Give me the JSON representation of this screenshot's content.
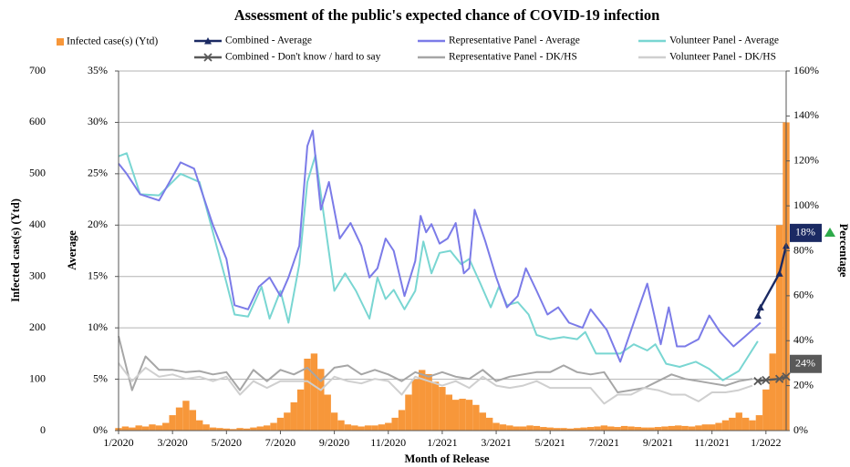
{
  "chart_data": {
    "type": "combo",
    "title": "Assessment of the public's expected chance of COVID-19 infection",
    "xlabel": "Month of Release",
    "ylabel": "Infected case(s) (Ytd)",
    "y2label": "Average",
    "y3label": "Percentage",
    "xlim": [
      0,
      24.75
    ],
    "xticks": [
      {
        "value": 0,
        "label": "1/2020"
      },
      {
        "value": 2,
        "label": "3/2020"
      },
      {
        "value": 4,
        "label": "5/2020"
      },
      {
        "value": 6,
        "label": "7/2020"
      },
      {
        "value": 8,
        "label": "9/2020"
      },
      {
        "value": 10,
        "label": "11/2020"
      },
      {
        "value": 12,
        "label": "1/2021"
      },
      {
        "value": 14,
        "label": "3/2021"
      },
      {
        "value": 16,
        "label": "5/2021"
      },
      {
        "value": 18,
        "label": "7/2021"
      },
      {
        "value": 20,
        "label": "9/2021"
      },
      {
        "value": 22,
        "label": "11/2021"
      },
      {
        "value": 24,
        "label": "1/2022"
      }
    ],
    "ylim": [
      0,
      700
    ],
    "yticks": [
      0,
      100,
      200,
      300,
      400,
      500,
      600,
      700
    ],
    "y2lim": [
      0,
      35
    ],
    "y2ticks": [
      {
        "value": 0,
        "label": "0%"
      },
      {
        "value": 5,
        "label": "5%"
      },
      {
        "value": 10,
        "label": "10%"
      },
      {
        "value": 15,
        "label": "15%"
      },
      {
        "value": 20,
        "label": "20%"
      },
      {
        "value": 25,
        "label": "25%"
      },
      {
        "value": 30,
        "label": "30%"
      },
      {
        "value": 35,
        "label": "35%"
      }
    ],
    "y3lim": [
      0,
      160
    ],
    "y3ticks": [
      {
        "value": 0,
        "label": "0%"
      },
      {
        "value": 20,
        "label": "20%"
      },
      {
        "value": 40,
        "label": "40%"
      },
      {
        "value": 60,
        "label": "60%"
      },
      {
        "value": 80,
        "label": "80%"
      },
      {
        "value": 100,
        "label": "100%"
      },
      {
        "value": 120,
        "label": "120%"
      },
      {
        "value": 140,
        "label": "140%"
      },
      {
        "value": 160,
        "label": "160%"
      }
    ],
    "grid": true,
    "series": [
      {
        "name": "Infected case(s) (Ytd)",
        "type": "bar",
        "axis": "y",
        "color": "#f7973a",
        "x": [
          0,
          0.25,
          0.5,
          0.75,
          1,
          1.25,
          1.5,
          1.75,
          2,
          2.25,
          2.5,
          2.75,
          3,
          3.25,
          3.5,
          3.75,
          4,
          4.25,
          4.5,
          4.75,
          5,
          5.25,
          5.5,
          5.75,
          6,
          6.25,
          6.5,
          6.75,
          7,
          7.25,
          7.5,
          7.75,
          8,
          8.25,
          8.5,
          8.75,
          9,
          9.25,
          9.5,
          9.75,
          10,
          10.25,
          10.5,
          10.75,
          11,
          11.25,
          11.5,
          11.75,
          12,
          12.25,
          12.5,
          12.75,
          13,
          13.25,
          13.5,
          13.75,
          14,
          14.25,
          14.5,
          14.75,
          15,
          15.25,
          15.5,
          15.75,
          16,
          16.25,
          16.5,
          16.75,
          17,
          17.25,
          17.5,
          17.75,
          18,
          18.25,
          18.5,
          18.75,
          19,
          19.25,
          19.5,
          19.75,
          20,
          20.25,
          20.5,
          20.75,
          21,
          21.25,
          21.5,
          21.75,
          22,
          22.25,
          22.5,
          22.75,
          23,
          23.25,
          23.5,
          23.75,
          24,
          24.25,
          24.5,
          24.75
        ],
        "values": [
          5,
          8,
          6,
          10,
          8,
          12,
          10,
          15,
          30,
          45,
          58,
          40,
          20,
          12,
          6,
          5,
          4,
          3,
          5,
          4,
          6,
          8,
          10,
          15,
          25,
          35,
          55,
          80,
          140,
          150,
          120,
          70,
          35,
          20,
          12,
          10,
          8,
          10,
          10,
          12,
          15,
          25,
          40,
          70,
          100,
          118,
          110,
          95,
          85,
          70,
          60,
          62,
          60,
          50,
          35,
          25,
          15,
          12,
          10,
          8,
          8,
          10,
          9,
          7,
          6,
          5,
          5,
          4,
          5,
          6,
          7,
          8,
          10,
          8,
          7,
          9,
          8,
          7,
          6,
          6,
          7,
          8,
          9,
          10,
          9,
          8,
          10,
          12,
          12,
          15,
          20,
          25,
          35,
          25,
          20,
          30,
          80,
          150,
          400,
          600
        ]
      },
      {
        "name": "Combined - Average",
        "type": "line",
        "axis": "y2",
        "color": "#1b2a63",
        "marker": "triangle",
        "x": [
          23.7,
          23.8,
          24.5,
          24.75
        ],
        "values": [
          11.2,
          12,
          15.3,
          18
        ],
        "value_labels": [
          null,
          null,
          null,
          "18%"
        ]
      },
      {
        "name": "Representative Panel - Average",
        "type": "line",
        "axis": "y2",
        "color": "#7b7be8",
        "x": [
          0,
          0.3,
          0.8,
          1.5,
          2.3,
          2.8,
          3.5,
          4,
          4.3,
          4.8,
          5.2,
          5.6,
          6,
          6.3,
          6.7,
          7,
          7.2,
          7.5,
          7.8,
          8.2,
          8.6,
          9,
          9.3,
          9.6,
          9.9,
          10.2,
          10.6,
          11,
          11.2,
          11.4,
          11.6,
          11.9,
          12.2,
          12.5,
          12.8,
          13,
          13.2,
          13.6,
          14,
          14.4,
          14.8,
          15.1,
          15.5,
          15.9,
          16.3,
          16.7,
          17.2,
          17.5,
          18.1,
          18.6,
          19.2,
          19.6,
          20.1,
          20.4,
          20.7,
          21,
          21.5,
          21.9,
          22.3,
          22.8,
          23.2,
          23.8
        ],
        "values": [
          26,
          25,
          23,
          22.4,
          26.1,
          25.5,
          20,
          16.7,
          12.2,
          11.8,
          14,
          14.9,
          13.1,
          14.9,
          18,
          27.7,
          29.2,
          21.5,
          24.2,
          18.7,
          20.2,
          18,
          14.9,
          15.8,
          18.7,
          17.5,
          13.1,
          16.5,
          20.9,
          19.3,
          20.1,
          18.2,
          18.7,
          20.2,
          15.3,
          15.8,
          21.5,
          18.4,
          14.9,
          12,
          13.1,
          15.8,
          13.6,
          11.3,
          12,
          10.5,
          10,
          11.8,
          9.8,
          6.7,
          11.3,
          14.3,
          8.4,
          12,
          8.2,
          8.2,
          8.9,
          11.2,
          9.6,
          8.2,
          9.1,
          10.5
        ]
      },
      {
        "name": "Volunteer Panel - Average",
        "type": "line",
        "axis": "y2",
        "color": "#79d6d2",
        "x": [
          0,
          0.3,
          0.8,
          1.5,
          2.3,
          3,
          3.5,
          4,
          4.3,
          4.8,
          5.3,
          5.6,
          6,
          6.3,
          6.7,
          7,
          7.3,
          7.6,
          8,
          8.4,
          8.8,
          9.3,
          9.6,
          9.9,
          10.2,
          10.6,
          11,
          11.3,
          11.6,
          11.9,
          12.3,
          12.7,
          13,
          13.4,
          13.8,
          14.1,
          14.4,
          14.8,
          15.2,
          15.5,
          16,
          16.5,
          17,
          17.3,
          17.7,
          18.6,
          19.1,
          19.6,
          19.9,
          20.3,
          20.8,
          21.4,
          21.9,
          22.4,
          23,
          23.7
        ],
        "values": [
          26.7,
          27,
          23,
          22.9,
          25,
          24.2,
          19.3,
          14.4,
          11.3,
          11.1,
          14,
          10.9,
          13.6,
          10.5,
          16.2,
          24.2,
          26.8,
          21.1,
          13.6,
          15.3,
          13.6,
          10.9,
          14.9,
          12.8,
          13.7,
          11.8,
          13.6,
          18.4,
          15.3,
          17.3,
          17.5,
          16.2,
          16.7,
          14.4,
          12,
          14,
          12.2,
          12.5,
          11.3,
          9.3,
          8.9,
          9.1,
          8.9,
          9.6,
          7.5,
          7.5,
          8.4,
          7.8,
          8.4,
          6.5,
          6.2,
          6.7,
          6,
          4.9,
          5.8,
          8.7
        ]
      },
      {
        "name": "Combined - Don't know / hard to say",
        "type": "line",
        "axis": "y3",
        "color": "#595959",
        "marker": "x",
        "x": [
          23.7,
          24,
          24.5,
          24.75
        ],
        "values": [
          22,
          22.5,
          23,
          24
        ],
        "value_labels": [
          null,
          null,
          null,
          "24%"
        ]
      },
      {
        "name": "Representative Panel - DK/HS",
        "type": "line",
        "axis": "y3",
        "color": "#a6a6a6",
        "x": [
          0,
          0.5,
          1,
          1.5,
          2,
          2.5,
          3,
          3.5,
          4,
          4.5,
          5,
          5.5,
          6,
          6.5,
          7,
          7.5,
          8,
          8.5,
          9,
          9.5,
          10,
          10.5,
          11,
          11.5,
          12,
          12.5,
          13,
          13.5,
          14,
          14.5,
          15,
          15.5,
          16,
          16.5,
          17,
          17.5,
          18,
          18.5,
          19,
          19.5,
          20,
          20.5,
          21,
          21.5,
          22,
          22.5,
          23,
          23.5
        ],
        "values": [
          42,
          18,
          33,
          27,
          27,
          26,
          26.5,
          25,
          26,
          18,
          27,
          22,
          27,
          25,
          28,
          22,
          28,
          29,
          25,
          27,
          25,
          22,
          26,
          24,
          26,
          24,
          23,
          27,
          22,
          24,
          25,
          26,
          26,
          29,
          26,
          25,
          26,
          17,
          18,
          19,
          22,
          25,
          23,
          22,
          21,
          20,
          22,
          23
        ]
      },
      {
        "name": "Volunteer Panel - DK/HS",
        "type": "line",
        "axis": "y3",
        "color": "#cfcfcf",
        "x": [
          0,
          0.5,
          1,
          1.5,
          2,
          2.5,
          3,
          3.5,
          4,
          4.5,
          5,
          5.5,
          6,
          6.5,
          7,
          7.5,
          8,
          8.5,
          9,
          9.5,
          10,
          10.5,
          11,
          11.5,
          12,
          12.5,
          13,
          13.5,
          14,
          14.5,
          15,
          15.5,
          16,
          16.5,
          17,
          17.5,
          18,
          18.5,
          19,
          19.5,
          20,
          20.5,
          21,
          21.5,
          22,
          22.5,
          23,
          23.5
        ],
        "values": [
          30,
          22,
          28,
          24,
          25,
          23,
          24,
          22,
          24,
          16,
          22,
          19,
          22,
          22,
          22,
          18,
          24,
          22,
          21,
          23,
          22,
          16,
          24,
          22,
          20,
          22,
          19,
          24,
          20,
          19,
          20,
          22,
          19,
          19,
          19,
          19,
          12,
          16,
          16,
          19,
          18,
          16,
          16,
          13,
          17,
          17,
          18,
          20
        ]
      }
    ]
  }
}
